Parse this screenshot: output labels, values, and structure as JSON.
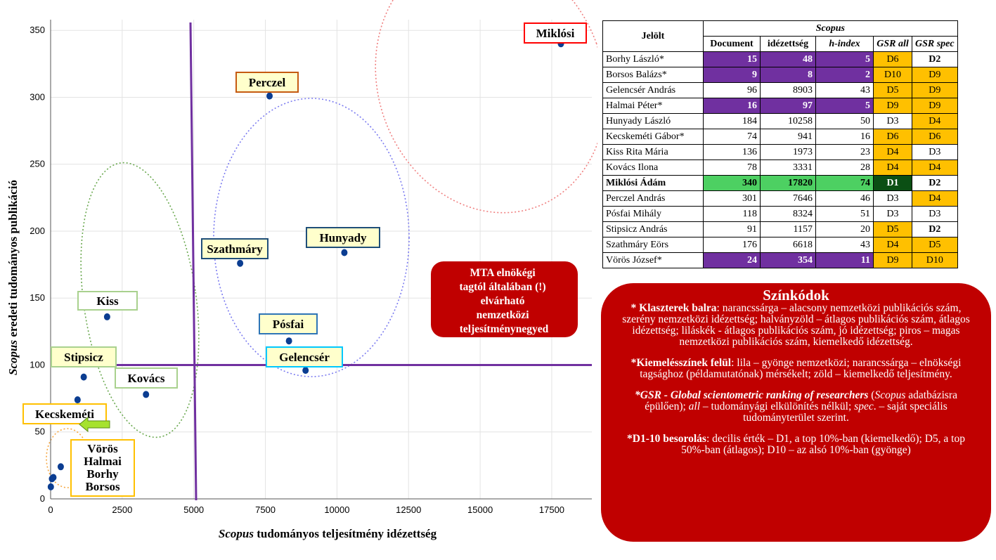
{
  "chart_data": {
    "type": "scatter",
    "xlabel": "tudományos teljesítmény idézettség",
    "xlabel_italic": "Scopus",
    "ylabel": "eredeti tudományos publikáció",
    "ylabel_italic": "Scopus",
    "xlim": [
      0,
      18900
    ],
    "ylim": [
      0,
      358
    ],
    "xticks": [
      0,
      2500,
      5000,
      7500,
      10000,
      12500,
      15000,
      17500
    ],
    "yticks": [
      0,
      50,
      100,
      150,
      200,
      250,
      300,
      350
    ],
    "grid": true,
    "points": [
      {
        "x": 17820,
        "y": 340
      },
      {
        "x": 7646,
        "y": 301
      },
      {
        "x": 10258,
        "y": 184
      },
      {
        "x": 6618,
        "y": 176
      },
      {
        "x": 8324,
        "y": 118
      },
      {
        "x": 8903,
        "y": 96
      },
      {
        "x": 1973,
        "y": 136
      },
      {
        "x": 3331,
        "y": 78
      },
      {
        "x": 1157,
        "y": 91
      },
      {
        "x": 941,
        "y": 74
      },
      {
        "x": 354,
        "y": 24
      },
      {
        "x": 97,
        "y": 16
      },
      {
        "x": 48,
        "y": 15
      },
      {
        "x": 8,
        "y": 9
      }
    ],
    "threshold_lines": {
      "x": 5000,
      "y": 100
    },
    "labels": {
      "miklosi": "Miklósi",
      "perczel": "Perczel",
      "hunyady": "Hunyady",
      "szathmary": "Szathmáry",
      "posfai": "Pósfai",
      "gelencser": "Gelencsér",
      "kiss": "Kiss",
      "kovacs": "Kovács",
      "stipsicz": "Stipsicz",
      "kecskemeti": "Kecskeméti",
      "low_group": [
        "Vörös",
        "Halmai",
        "Borhy",
        "Borsos"
      ]
    },
    "annotation": [
      "MTA elnökégi",
      "tagtól általában (!)",
      "elvárható",
      "nemzetközi",
      "teljesítménynegyed"
    ]
  },
  "table": {
    "header_candidate": "Jelölt",
    "header_group": "Scopus",
    "columns": [
      "Document",
      "idézettség",
      "h-index",
      "GSR all",
      "GSR spec"
    ],
    "rows": [
      {
        "name": "Borhy László*",
        "doc": "15",
        "cit": "48",
        "h": "5",
        "gall": "D6",
        "gspec": "D2",
        "style": [
          "purple",
          "purple",
          "purple",
          "orange",
          "bold"
        ]
      },
      {
        "name": "Borsos Balázs*",
        "doc": "9",
        "cit": "8",
        "h": "2",
        "gall": "D10",
        "gspec": "D9",
        "style": [
          "purple",
          "purple",
          "purple",
          "orange",
          "orange"
        ]
      },
      {
        "name": "Gelencsér András",
        "doc": "96",
        "cit": "8903",
        "h": "43",
        "gall": "D5",
        "gspec": "D9",
        "style": [
          "",
          "",
          "",
          "orange",
          "orange"
        ]
      },
      {
        "name": "Halmai Péter*",
        "doc": "16",
        "cit": "97",
        "h": "5",
        "gall": "D9",
        "gspec": "D9",
        "style": [
          "purple",
          "purple",
          "purple",
          "orange",
          "orange"
        ]
      },
      {
        "name": "Hunyady László",
        "doc": "184",
        "cit": "10258",
        "h": "50",
        "gall": "D3",
        "gspec": "D4",
        "style": [
          "",
          "",
          "",
          "",
          "orange"
        ]
      },
      {
        "name": "Kecskeméti Gábor*",
        "doc": "74",
        "cit": "941",
        "h": "16",
        "gall": "D6",
        "gspec": "D6",
        "style": [
          "",
          "",
          "",
          "orange",
          "orange"
        ]
      },
      {
        "name": "Kiss Rita Mária",
        "doc": "136",
        "cit": "1973",
        "h": "23",
        "gall": "D4",
        "gspec": "D3",
        "style": [
          "",
          "",
          "",
          "orange",
          ""
        ]
      },
      {
        "name": "Kovács Ilona",
        "doc": "78",
        "cit": "3331",
        "h": "28",
        "gall": "D4",
        "gspec": "D4",
        "style": [
          "",
          "",
          "",
          "orange",
          "orange"
        ]
      },
      {
        "name": "Miklósi Ádám",
        "doc": "340",
        "cit": "17820",
        "h": "74",
        "gall": "D1",
        "gspec": "D2",
        "style": [
          "green",
          "green",
          "green",
          "darkgreen",
          "bold"
        ],
        "bold": true
      },
      {
        "name": "Perczel András",
        "doc": "301",
        "cit": "7646",
        "h": "46",
        "gall": "D3",
        "gspec": "D4",
        "style": [
          "",
          "",
          "",
          "",
          "orange"
        ]
      },
      {
        "name": "Pósfai Mihály",
        "doc": "118",
        "cit": "8324",
        "h": "51",
        "gall": "D3",
        "gspec": "D3",
        "style": [
          "",
          "",
          "",
          "",
          ""
        ]
      },
      {
        "name": "Stipsicz András",
        "doc": "91",
        "cit": "1157",
        "h": "20",
        "gall": "D5",
        "gspec": "D2",
        "style": [
          "",
          "",
          "",
          "orange",
          "bold"
        ]
      },
      {
        "name": "Szathmáry Eörs",
        "doc": "176",
        "cit": "6618",
        "h": "43",
        "gall": "D4",
        "gspec": "D5",
        "style": [
          "",
          "",
          "",
          "orange",
          "orange"
        ]
      },
      {
        "name": "Vörös József*",
        "doc": "24",
        "cit": "354",
        "h": "11",
        "gall": "D9",
        "gspec": "D10",
        "style": [
          "purple",
          "purple",
          "purple",
          "orange",
          "orange"
        ]
      }
    ]
  },
  "legend": {
    "title": "Színkódok",
    "p1_bold": "* Klaszterek balra",
    "p1_text": ": narancssárga – alacsony nemzetközi publikációs szám, szerény nemzetközi idézettség; halványzöld – átlagos publikációs szám, átlagos idézettség; liláskék - átlagos publikációs szám, jó idézettség; piros – magas nemzetközi publikációs szám, kiemelkedő idézettség.",
    "p2_bold": "*Kiemelésszínek felül",
    "p2_text": ": lila – gyönge nemzetközi; narancssárga – elnökségi tagsághoz (példamutatónak) mérsékelt; zöld – kiemelkedő teljesítmény.",
    "p3_bold": "*GSR - Global scientometric ranking of researchers",
    "p3_open": " (",
    "p3_i1": "Scopus",
    "p3_t1": " adatbázisra épülően); ",
    "p3_i2": "all",
    "p3_t2": " – tudományági elkülönítés nélkül; ",
    "p3_i3": "spec",
    "p3_t3": ". – saját speciális tudományterület szerint.",
    "p4_bold": "*D1-10 besorolás",
    "p4_text": ": decilis érték – D1, a top 10%-ban (kiemelkedő); D5, a top 50%-ban (átlagos); D10 – az alsó 10%-ban (gyönge)"
  },
  "colors": {
    "point": "#0b3d91",
    "threshold": "#7030a0",
    "purple": "#7030a0",
    "orange": "#ffc000",
    "green": "#4dd062",
    "darkgreen": "#0b4f14",
    "red": "#c00000",
    "label_fill": "#ffffcc"
  }
}
